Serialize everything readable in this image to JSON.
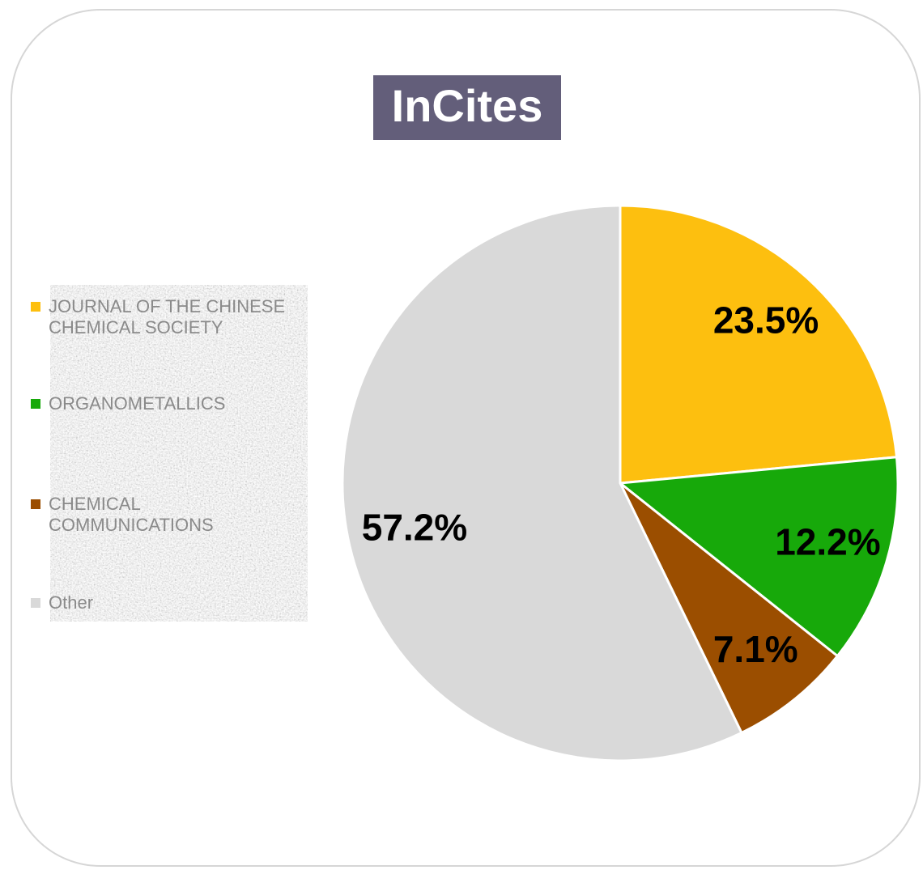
{
  "chart_data": {
    "type": "pie",
    "title": "InCites",
    "categories": [
      "JOURNAL OF THE CHINESE CHEMICAL SOCIETY",
      "ORGANOMETALLICS",
      "CHEMICAL COMMUNICATIONS",
      "Other"
    ],
    "values": [
      23.5,
      12.2,
      7.1,
      57.2
    ],
    "value_labels": [
      "23.5%",
      "12.2%",
      "7.1%",
      "57.2%"
    ],
    "colors": [
      "#fdbf0f",
      "#17a90a",
      "#9b4e00",
      "#d9d9d9"
    ],
    "legend": "left"
  }
}
